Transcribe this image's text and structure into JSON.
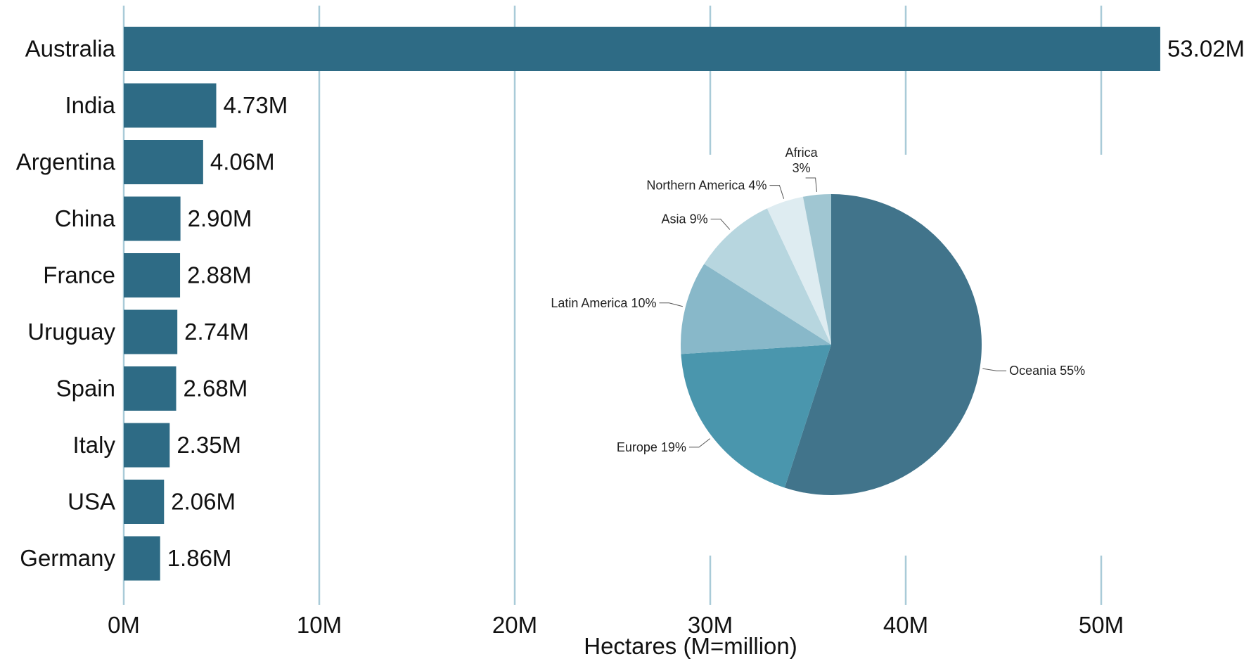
{
  "chart_data": [
    {
      "type": "bar",
      "orientation": "horizontal",
      "categories": [
        "Australia",
        "India",
        "Argentina",
        "China",
        "France",
        "Uruguay",
        "Spain",
        "Italy",
        "USA",
        "Germany"
      ],
      "values": [
        53.02,
        4.73,
        4.06,
        2.9,
        2.88,
        2.74,
        2.68,
        2.35,
        2.06,
        1.86
      ],
      "value_labels": [
        "53.02M",
        "4.73M",
        "4.06M",
        "2.90M",
        "2.88M",
        "2.74M",
        "2.68M",
        "2.35M",
        "2.06M",
        "1.86M"
      ],
      "xlabel": "Hectares (M=million)",
      "ticks": [
        0,
        10,
        20,
        30,
        40,
        50
      ],
      "tick_labels": [
        "0M",
        "10M",
        "20M",
        "30M",
        "40M",
        "50M"
      ],
      "xlim": [
        0,
        55
      ],
      "grid": "vertical",
      "bar_color": "#2e6b85",
      "grid_color": "#a9cbd8"
    },
    {
      "type": "pie",
      "slices": [
        {
          "name": "Oceania",
          "value": 55,
          "label": "Oceania 55%",
          "color": "#41748b"
        },
        {
          "name": "Europe",
          "value": 19,
          "label": "Europe 19%",
          "color": "#4a96ad"
        },
        {
          "name": "Latin America",
          "value": 10,
          "label": "Latin America 10%",
          "color": "#88b8c9"
        },
        {
          "name": "Asia",
          "value": 9,
          "label": "Asia 9%",
          "color": "#b7d6df"
        },
        {
          "name": "Northern America",
          "value": 4,
          "label": "Northern America 4%",
          "color": "#deecf1"
        },
        {
          "name": "Africa",
          "value": 3,
          "label": "Africa 3%",
          "label_lines": [
            "Africa",
            "3%"
          ],
          "color": "#a0c6d2"
        }
      ]
    }
  ]
}
